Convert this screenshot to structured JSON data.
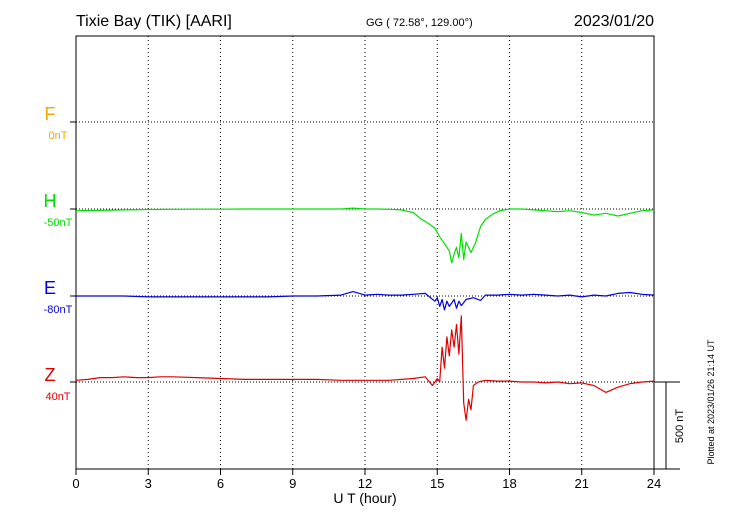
{
  "header": {
    "station": "Tixie Bay (TIK)  [AARI]",
    "coords": "GG ( 72.58°, 129.00°)",
    "date": "2023/01/20"
  },
  "footer": {
    "plotted": "Plotted at 2023/01/26 21:14 UT"
  },
  "chart_data": {
    "type": "line",
    "title": "Tixie Bay (TIK)  [AARI]",
    "xlabel": "U T (hour)",
    "xlim": [
      0,
      24
    ],
    "xticks": [
      "0",
      "3",
      "6",
      "9",
      "12",
      "15",
      "18",
      "21",
      "24"
    ],
    "scale_bar": "500 nT",
    "grid": true,
    "series": [
      {
        "name": "F",
        "baseline_label": "0nT",
        "color": "#f2a900",
        "x": [],
        "y": []
      },
      {
        "name": "H",
        "baseline_label": "-50nT",
        "color": "#00e000",
        "x": [
          0,
          1,
          2,
          3,
          4,
          5,
          6,
          7,
          8,
          9,
          10,
          11,
          11.5,
          12,
          12.5,
          13,
          13.5,
          14,
          14.3,
          14.6,
          14.9,
          15.1,
          15.3,
          15.5,
          15.6,
          15.7,
          15.8,
          15.9,
          16.0,
          16.1,
          16.2,
          16.4,
          16.6,
          16.8,
          17.0,
          17.3,
          17.6,
          18.0,
          18.5,
          19,
          19.5,
          20,
          20.5,
          21,
          21.5,
          22,
          22.5,
          23,
          23.5,
          24
        ],
        "y": [
          -10,
          -8,
          -5,
          -3,
          -2,
          -1,
          -1,
          0,
          0,
          0,
          0,
          0,
          5,
          0,
          0,
          -2,
          -5,
          -20,
          -55,
          -80,
          -110,
          -160,
          -200,
          -240,
          -310,
          -260,
          -220,
          -280,
          -140,
          -290,
          -190,
          -250,
          -190,
          -100,
          -60,
          -30,
          -10,
          0,
          0,
          -5,
          -10,
          -15,
          -10,
          -20,
          -35,
          -25,
          -40,
          -25,
          -10,
          -5
        ]
      },
      {
        "name": "E",
        "baseline_label": "-80nT",
        "color": "#0000e0",
        "x": [
          0,
          1,
          2,
          3,
          4,
          5,
          6,
          7,
          8,
          9,
          10,
          11,
          11.5,
          12,
          12.5,
          13,
          13.5,
          14,
          14.5,
          14.9,
          15.0,
          15.1,
          15.2,
          15.3,
          15.4,
          15.5,
          15.6,
          15.7,
          15.8,
          15.9,
          16.0,
          16.2,
          16.5,
          16.8,
          17.0,
          17.5,
          18,
          18.5,
          19,
          19.5,
          20,
          20.5,
          21,
          21.5,
          22,
          22.5,
          23,
          23.5,
          24
        ],
        "y": [
          0,
          0,
          0,
          -5,
          -5,
          -5,
          -5,
          -5,
          -5,
          0,
          0,
          5,
          25,
          5,
          10,
          5,
          5,
          10,
          15,
          -30,
          -10,
          -60,
          -20,
          -80,
          -30,
          -60,
          -40,
          -20,
          -70,
          -30,
          -55,
          -20,
          -10,
          -25,
          5,
          5,
          10,
          5,
          10,
          5,
          0,
          5,
          -5,
          5,
          0,
          15,
          20,
          10,
          5
        ]
      },
      {
        "name": "Z",
        "baseline_label": "40nT",
        "color": "#e00000",
        "x": [
          0,
          0.5,
          1,
          1.5,
          2,
          2.5,
          3,
          3.5,
          4,
          5,
          6,
          7,
          8,
          9,
          10,
          11,
          12,
          13,
          14,
          14.5,
          14.8,
          15.0,
          15.1,
          15.2,
          15.3,
          15.4,
          15.5,
          15.6,
          15.7,
          15.8,
          15.9,
          16.0,
          16.1,
          16.2,
          16.3,
          16.4,
          16.5,
          16.7,
          17.0,
          17.5,
          18,
          18.5,
          19,
          19.5,
          20,
          20.5,
          21,
          21.5,
          22,
          22.5,
          23,
          23.5,
          24
        ],
        "y": [
          10,
          15,
          25,
          25,
          30,
          25,
          25,
          30,
          30,
          25,
          20,
          15,
          15,
          15,
          15,
          10,
          10,
          10,
          20,
          30,
          -20,
          20,
          0,
          200,
          80,
          260,
          150,
          300,
          200,
          330,
          160,
          380,
          -120,
          -220,
          -100,
          -160,
          -20,
          0,
          10,
          5,
          5,
          0,
          0,
          -5,
          0,
          -10,
          -5,
          -20,
          -60,
          -30,
          -10,
          0,
          5
        ]
      }
    ]
  }
}
